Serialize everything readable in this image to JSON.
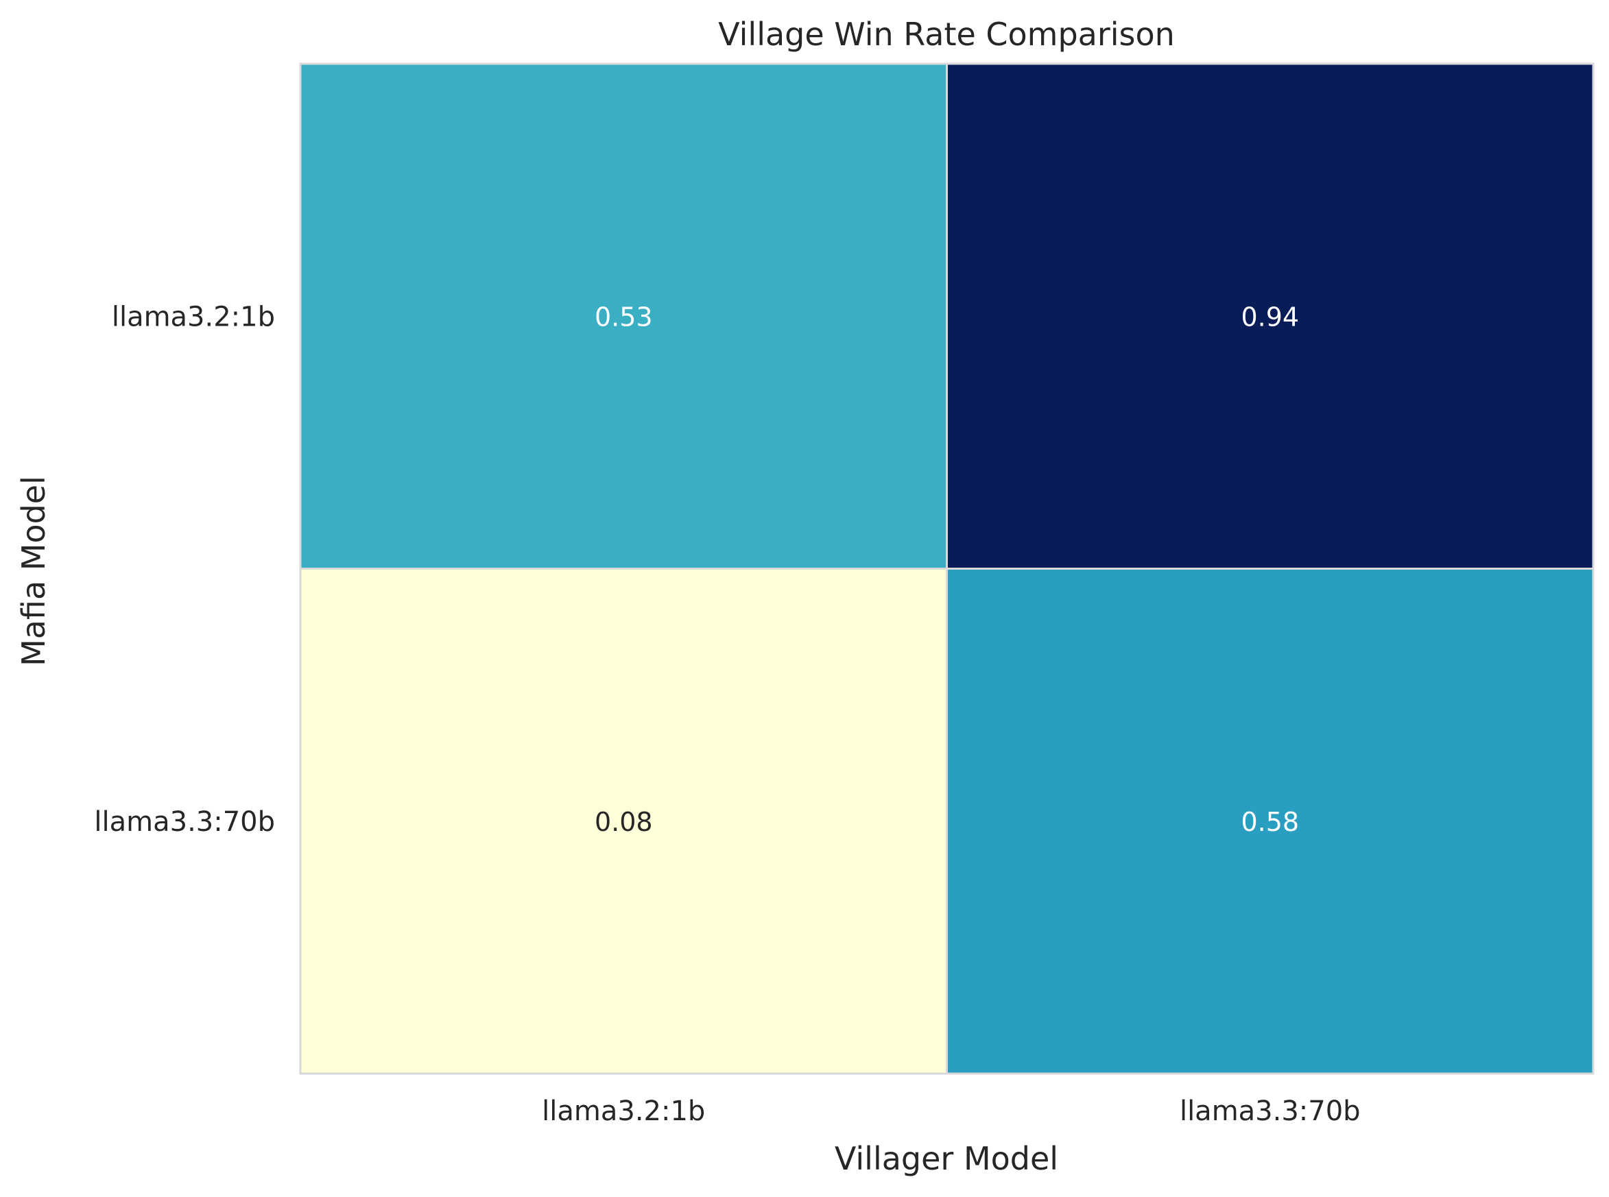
{
  "chart_data": {
    "type": "heatmap",
    "title": "Village Win Rate Comparison",
    "xlabel": "Villager Model",
    "ylabel": "Mafia Model",
    "x_categories": [
      "llama3.2:1b",
      "llama3.3:70b"
    ],
    "y_categories": [
      "llama3.2:1b",
      "llama3.3:70b"
    ],
    "values": [
      [
        0.53,
        0.94
      ],
      [
        0.08,
        0.58
      ]
    ],
    "value_labels": [
      [
        "0.53",
        "0.94"
      ],
      [
        "0.08",
        "0.58"
      ]
    ],
    "colormap": "YlGnBu",
    "colors": {
      "low": "#ffffd9",
      "high": "#081d58",
      "grid_line": "#d9d9d9",
      "light_text": "#ffffff",
      "dark_text": "#262626"
    },
    "colorbar": false,
    "legend": "none"
  }
}
